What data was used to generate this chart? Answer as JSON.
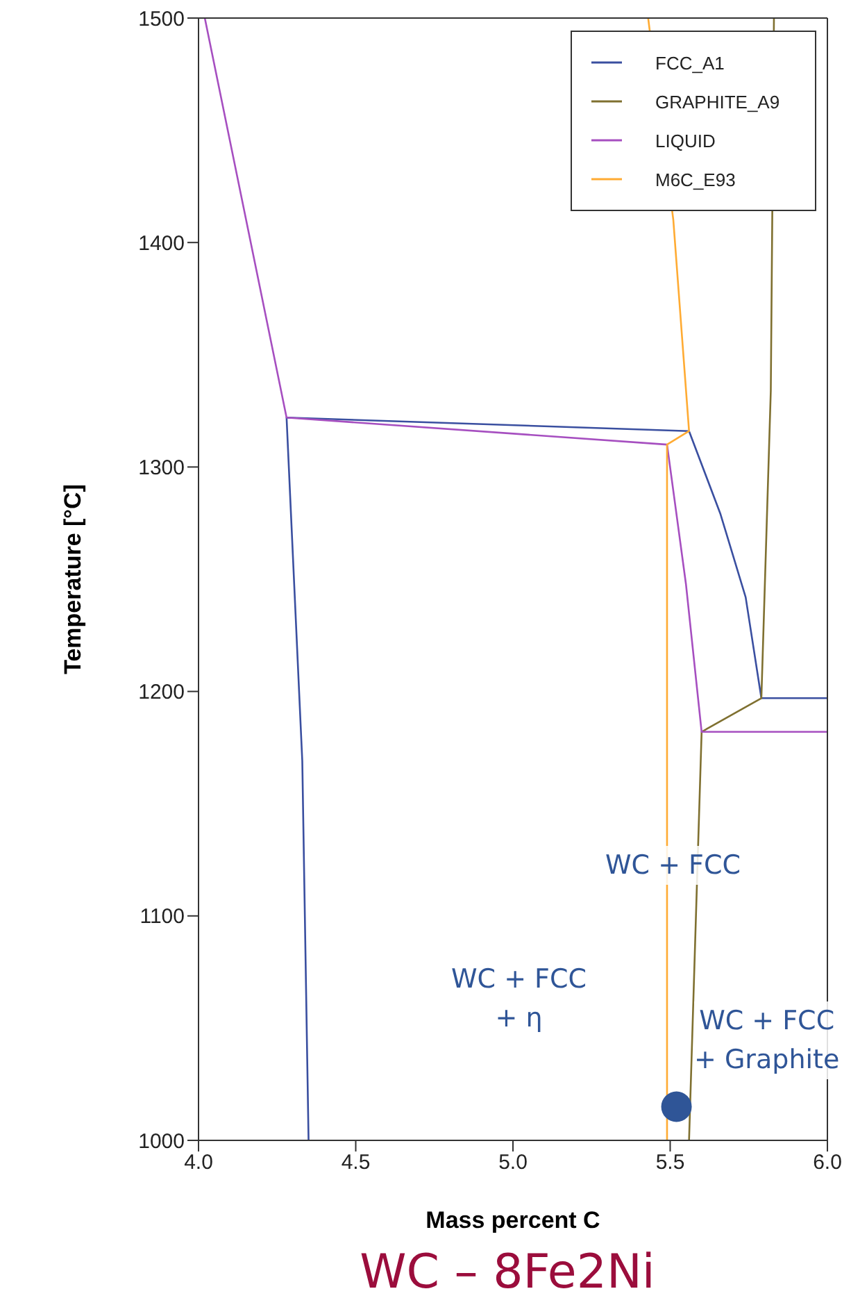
{
  "chart_data": {
    "type": "line",
    "title": "WC – 8Fe2Ni",
    "xlabel": "Mass percent C",
    "ylabel": "Temperature [°C]",
    "xlim": [
      4.0,
      6.0
    ],
    "xticks": [
      {
        "value": 4.0,
        "label": "4.0"
      },
      {
        "value": 4.5,
        "label": "4.5"
      },
      {
        "value": 5.0,
        "label": "5.0"
      },
      {
        "value": 5.5,
        "label": "5.5"
      },
      {
        "value": 6.0,
        "label": "6.0"
      }
    ],
    "ylim": [
      1000,
      1500
    ],
    "yticks": [
      1000,
      1100,
      1200,
      1300,
      1400,
      1500
    ],
    "grid": false,
    "legend": "top right",
    "marker": "none",
    "line_style": "solid",
    "series": [
      {
        "name": "FCC_A1",
        "color": "#3a4fa0",
        "x": [
          4.35,
          4.33,
          4.28,
          5.56,
          5.66,
          5.74,
          5.79,
          6.0
        ],
        "values": [
          1000,
          1169,
          1322,
          1316,
          1279,
          1242,
          1197,
          1197
        ]
      },
      {
        "name": "GRAPHITE_A9",
        "color": "#7f7030",
        "x": [
          5.83,
          5.82,
          5.79,
          5.6,
          5.56
        ],
        "values": [
          1500,
          1334,
          1197,
          1182,
          1000
        ]
      },
      {
        "name": "LIQUID",
        "color": "#a64fc0",
        "x": [
          4.02,
          4.28,
          5.49,
          5.55,
          5.6,
          6.0
        ],
        "values": [
          1500,
          1322,
          1310,
          1248,
          1182,
          1182
        ]
      },
      {
        "name": "M6C_E93",
        "color": "#ffab33",
        "x": [
          5.43,
          5.51,
          5.56,
          5.49,
          5.49,
          5.49
        ],
        "values": [
          1500,
          1410,
          1316,
          1310,
          1169,
          1000
        ]
      },
      {
        "type": "scatter",
        "marker": "circle",
        "color": "#2f5597",
        "x": [
          5.52
        ],
        "values": [
          1015
        ]
      }
    ],
    "annotations": [
      "WC + FCC",
      "WC + FCC\n+ η",
      "WC + FCC\n+ Graphite"
    ]
  }
}
